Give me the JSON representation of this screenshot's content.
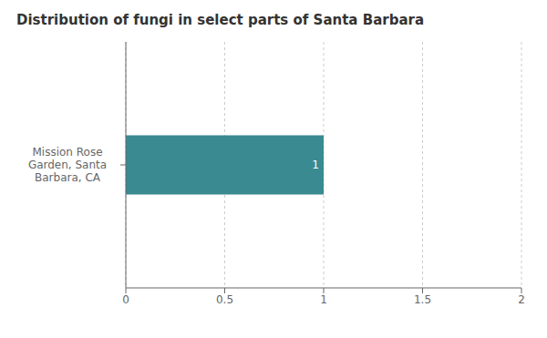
{
  "chart_data": {
    "type": "bar",
    "orientation": "horizontal",
    "title": "Distribution of fungi in select parts of Santa Barbara",
    "categories": [
      "Mission Rose\nGarden, Santa\nBarbara, CA"
    ],
    "values": [
      1
    ],
    "color": "#3a8a91",
    "xlim": [
      0,
      2
    ],
    "xticks": [
      0,
      0.5,
      1,
      1.5,
      2
    ],
    "grid": true,
    "data_labels": true
  }
}
